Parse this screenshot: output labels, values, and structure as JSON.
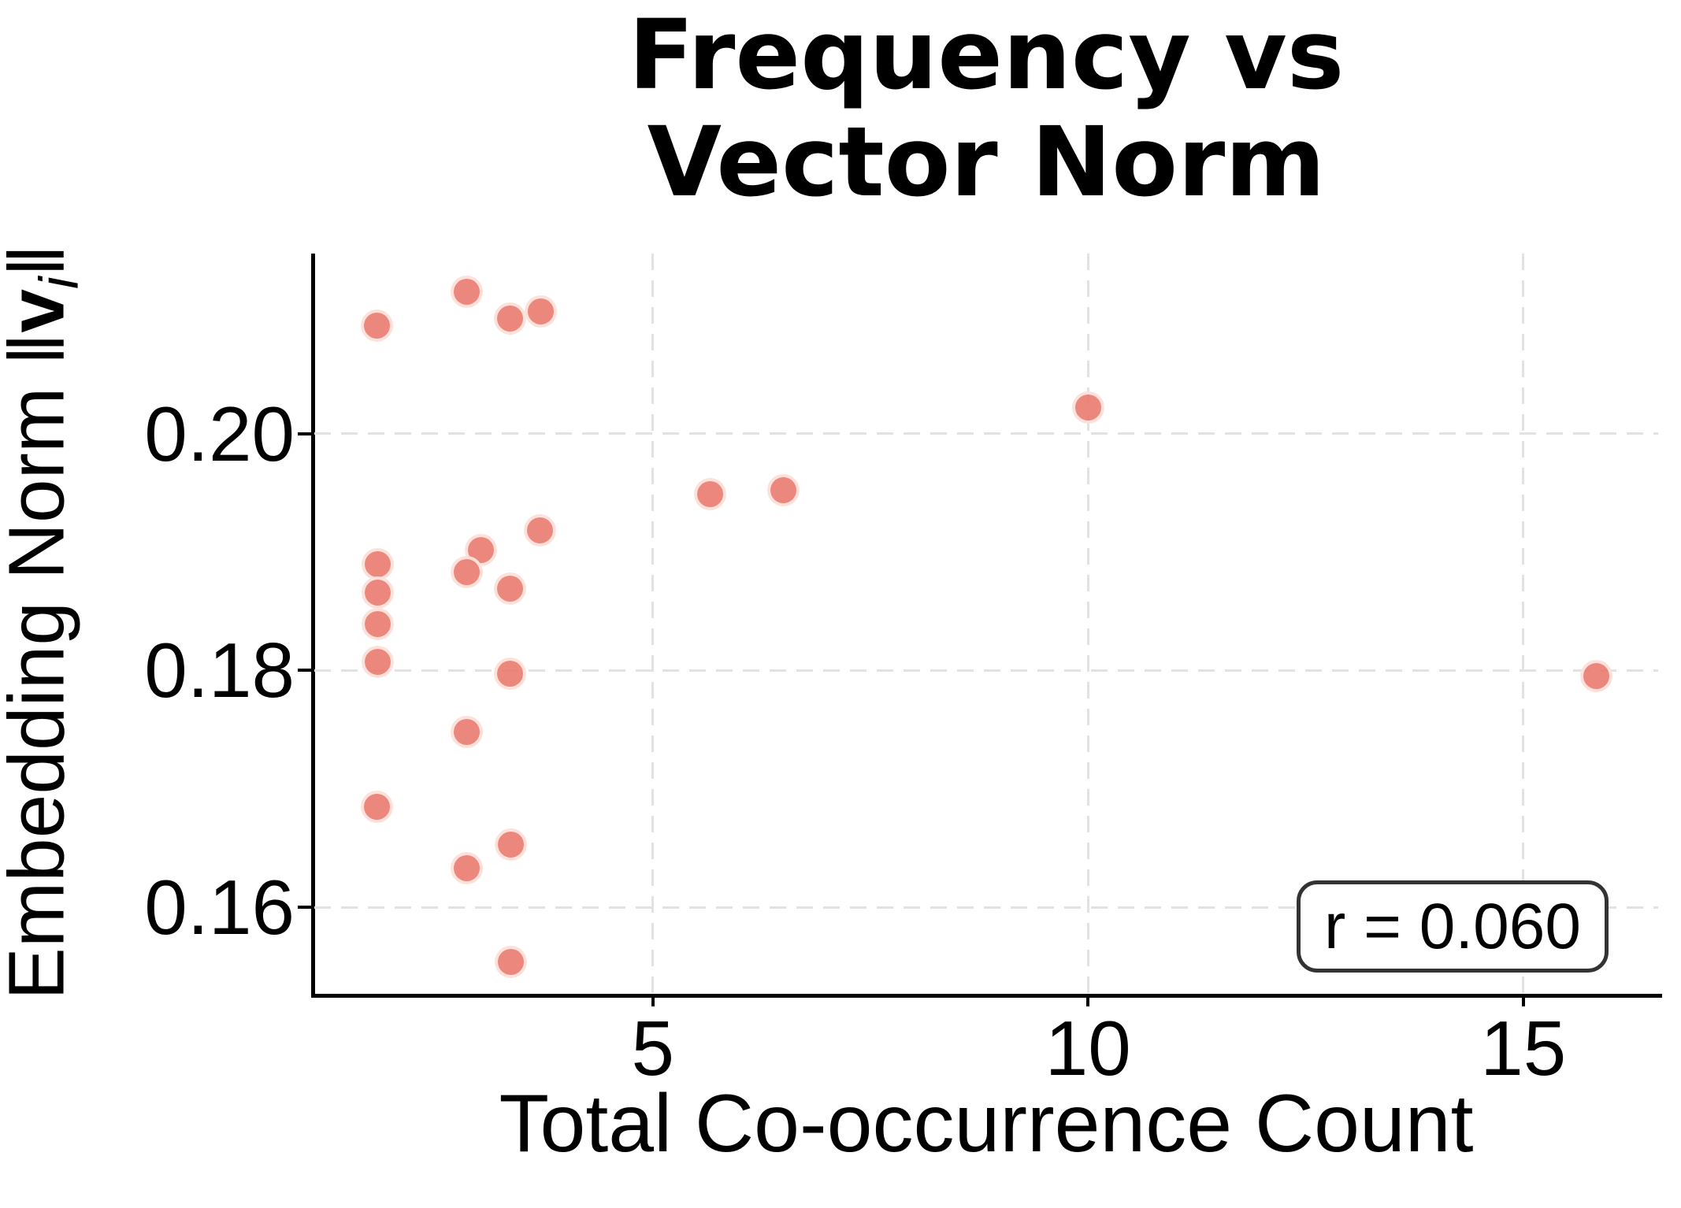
{
  "title": {
    "lines": [
      "Frequency vs",
      "Vector Norm"
    ]
  },
  "axes": {
    "x_label": "Total Co-occurrence Count",
    "y_label_prefix": "Embedding Norm ",
    "y_label_norm_open": "‖",
    "y_label_vector": "v",
    "y_label_subscript": "i",
    "y_label_norm_close": "‖"
  },
  "annotation": {
    "text": "r = 0.060"
  },
  "chart_data": {
    "type": "scatter",
    "title": "Frequency vs Vector Norm",
    "xlabel": "Total Co-occurrence Count",
    "ylabel": "Embedding Norm ‖vᵢ‖",
    "xlim": [
      1.11,
      16.55
    ],
    "ylim": [
      0.1527,
      0.2152
    ],
    "x_ticks": [
      5,
      10,
      15
    ],
    "x_tick_labels": [
      "5",
      "10",
      "15"
    ],
    "y_ticks": [
      0.2,
      0.18,
      0.16
    ],
    "y_tick_labels": [
      "0.20",
      "0.18",
      "0.16"
    ],
    "grid": true,
    "legend": false,
    "correlation_r": 0.06,
    "marker_color": "#e97a6e",
    "marker_alpha": 0.9,
    "grid_color": "#e2e2e2",
    "points": [
      [
        1.83,
        0.2091
      ],
      [
        2.86,
        0.212
      ],
      [
        3.36,
        0.2097
      ],
      [
        3.71,
        0.2103
      ],
      [
        10.0,
        0.2022
      ],
      [
        5.66,
        0.1949
      ],
      [
        6.5,
        0.1952
      ],
      [
        3.7,
        0.1918
      ],
      [
        3.02,
        0.1902
      ],
      [
        1.84,
        0.189
      ],
      [
        2.86,
        0.1883
      ],
      [
        3.36,
        0.1869
      ],
      [
        1.84,
        0.1866
      ],
      [
        1.84,
        0.1839
      ],
      [
        1.84,
        0.1807
      ],
      [
        3.36,
        0.1797
      ],
      [
        15.84,
        0.1795
      ],
      [
        2.86,
        0.1748
      ],
      [
        1.83,
        0.1685
      ],
      [
        3.37,
        0.1653
      ],
      [
        2.86,
        0.1633
      ],
      [
        3.37,
        0.1554
      ]
    ]
  }
}
